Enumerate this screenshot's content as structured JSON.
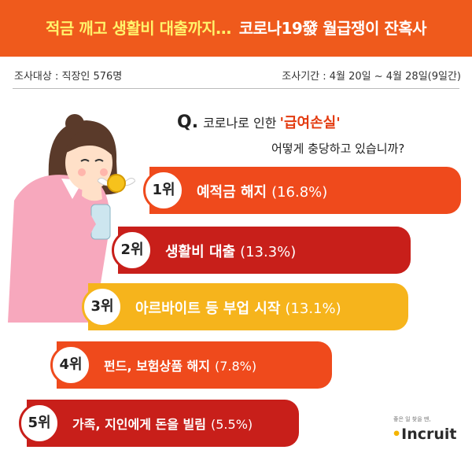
{
  "header": {
    "title_part1": "적금 깨고 생활비 대출까지…",
    "title_part2": "코로나19發 월급쟁이 잔혹사"
  },
  "survey": {
    "target": "조사대상 : 직장인 576명",
    "period": "조사기간 : 4월 20일 ~ 4월 28일(9일간)"
  },
  "question": {
    "prefix": "Q.",
    "text_pre": "코로나로 인한",
    "text_key": "'급여손실'",
    "text_line2": "어떻게 충당하고 있습니까?"
  },
  "chart_data": {
    "type": "bar",
    "orientation": "horizontal",
    "unit": "%",
    "items": [
      {
        "rank": "1위",
        "label": "예적금 해지",
        "value": 16.8,
        "value_text": "(16.8%)",
        "color": "#ef4a1c"
      },
      {
        "rank": "2위",
        "label": "생활비 대출",
        "value": 13.3,
        "value_text": "(13.3%)",
        "color": "#c81f1a"
      },
      {
        "rank": "3위",
        "label": "아르바이트 등 부업 시작",
        "value": 13.1,
        "value_text": "(13.1%)",
        "color": "#f6b41c"
      },
      {
        "rank": "4위",
        "label": "펀드, 보험상품 해지",
        "value": 7.8,
        "value_text": "(7.8%)",
        "color": "#ef4a1c"
      },
      {
        "rank": "5위",
        "label": "가족, 지인에게 돈을 빌림",
        "value": 5.5,
        "value_text": "(5.5%)",
        "color": "#c81f1a"
      }
    ]
  },
  "logo": {
    "tagline": "좋은 일 찾을 땐,",
    "name_dot": "•",
    "name": "Incruit"
  }
}
